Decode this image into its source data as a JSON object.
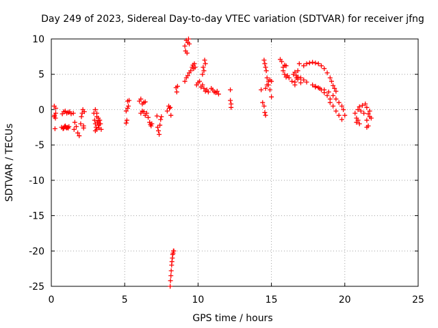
{
  "chart_data": {
    "type": "scatter",
    "title": "Day 249 of 2023, Sidereal Day-to-day VTEC variation (SDTVAR) for receiver jfng",
    "xlabel": "GPS time / hours",
    "ylabel": "SDTVAR / TECUs",
    "xlim": [
      0,
      25
    ],
    "ylim": [
      -25,
      10
    ],
    "xticks": [
      "0",
      "5",
      "10",
      "15",
      "20",
      "25"
    ],
    "yticks": [
      "10",
      "5",
      "0",
      "-5",
      "-10",
      "-15",
      "-20",
      "-25"
    ],
    "grid": true,
    "marker": "plus",
    "series": [
      {
        "name": "SDTVAR",
        "color": "#ff0000",
        "x": [
          0.2,
          0.2,
          0.22,
          0.25,
          0.28,
          0.3,
          0.3,
          0.7,
          0.8,
          0.85,
          0.9,
          0.95,
          1.0,
          1.05,
          1.1,
          1.15,
          1.2,
          0.75,
          0.85,
          0.95,
          1.05,
          1.15,
          1.25,
          1.35,
          1.5,
          1.55,
          1.6,
          1.7,
          1.8,
          1.9,
          2.0,
          2.05,
          2.1,
          2.15,
          2.2,
          2.2,
          2.25,
          2.9,
          2.95,
          3.0,
          3.05,
          3.1,
          3.15,
          3.2,
          3.25,
          3.3,
          3.35,
          3.4,
          3.0,
          3.1,
          3.2,
          3.3,
          3.0,
          3.1,
          3.2,
          5.1,
          5.15,
          5.2,
          5.25,
          5.3,
          5.1,
          5.2,
          6.0,
          6.1,
          6.2,
          6.3,
          6.4,
          6.1,
          6.2,
          6.3,
          6.4,
          6.5,
          6.6,
          6.7,
          6.75,
          6.8,
          6.85,
          7.2,
          7.25,
          7.3,
          7.35,
          7.4,
          7.45,
          7.5,
          7.9,
          8.0,
          8.05,
          8.1,
          8.15,
          8.1,
          8.12,
          8.15,
          8.17,
          8.2,
          8.22,
          8.25,
          8.27,
          8.3,
          8.32,
          8.35,
          8.5,
          8.55,
          8.6,
          9.1,
          9.15,
          9.2,
          9.25,
          9.3,
          9.35,
          9.4,
          9.1,
          9.2,
          9.3,
          9.4,
          9.5,
          9.6,
          9.65,
          9.7,
          9.75,
          9.8,
          9.9,
          10.0,
          10.1,
          10.2,
          10.3,
          10.4,
          10.5,
          10.6,
          10.7,
          10.3,
          10.35,
          10.4,
          10.45,
          10.5,
          10.9,
          11.0,
          11.1,
          11.2,
          11.3,
          11.4,
          12.2,
          12.2,
          12.25,
          12.25,
          14.3,
          14.4,
          14.5,
          14.55,
          14.6,
          14.5,
          14.55,
          14.6,
          14.65,
          14.7,
          14.8,
          14.9,
          15.0,
          14.6,
          14.7,
          14.8,
          14.9,
          15.0,
          15.6,
          15.7,
          15.8,
          15.9,
          16.0,
          16.1,
          15.8,
          15.9,
          16.0,
          16.2,
          16.4,
          16.6,
          16.7,
          16.8,
          16.9,
          16.5,
          16.6,
          16.7,
          16.8,
          17.0,
          16.6,
          16.8,
          17.0,
          17.2,
          17.4,
          17.2,
          17.4,
          17.6,
          17.8,
          18.0,
          18.2,
          18.4,
          18.6,
          18.8,
          19.0,
          19.1,
          19.2,
          19.3,
          19.4,
          18.0,
          18.2,
          18.4,
          18.6,
          18.8,
          19.0,
          17.8,
          18.0,
          18.3,
          18.6,
          18.9,
          19.2,
          19.4,
          19.6,
          19.8,
          19.9,
          20.0,
          19.0,
          19.2,
          19.4,
          19.6,
          19.8,
          20.7,
          20.8,
          20.9,
          21.0,
          21.1,
          21.2,
          21.3,
          21.4,
          21.5,
          20.8,
          20.9,
          21.0,
          21.5,
          21.6,
          21.7,
          21.8,
          21.5,
          21.6,
          21.7
        ],
        "y": [
          -1.0,
          0.5,
          -0.8,
          -2.7,
          -1.2,
          -0.5,
          0.2,
          -2.5,
          -2.7,
          -2.6,
          -2.4,
          -2.3,
          -2.5,
          -2.6,
          -2.5,
          -2.6,
          -2.4,
          -0.6,
          -0.3,
          -0.2,
          -0.5,
          -0.4,
          -0.3,
          -0.6,
          -0.5,
          -2.8,
          -1.8,
          -2.4,
          -3.3,
          -3.7,
          -2.0,
          -1.0,
          -0.5,
          0.0,
          -2.3,
          -2.6,
          -0.3,
          -0.5,
          -1.5,
          -2.0,
          -2.5,
          -1.0,
          -1.8,
          -2.2,
          -2.6,
          -1.5,
          -2.0,
          -2.8,
          0.0,
          -0.5,
          -1.2,
          -2.0,
          -3.0,
          -2.8,
          -1.6,
          -1.9,
          -1.5,
          1.2,
          0.5,
          1.3,
          -0.2,
          0.2,
          1.2,
          1.5,
          0.8,
          1.0,
          1.1,
          -0.5,
          -0.2,
          -0.3,
          -0.8,
          -0.5,
          -1.1,
          -1.8,
          -2.1,
          -2.3,
          -2.0,
          -0.9,
          -2.5,
          -3.0,
          -3.5,
          -2.2,
          -1.4,
          -1.0,
          -0.2,
          0.5,
          0.2,
          0.3,
          -0.8,
          -25.0,
          -24.2,
          -23.5,
          -22.8,
          -22.0,
          -21.5,
          -21.0,
          -20.5,
          -20.3,
          -20.0,
          -20.0,
          3.1,
          2.5,
          3.3,
          9.0,
          8.3,
          9.8,
          8.0,
          9.5,
          10.0,
          9.3,
          4.0,
          4.5,
          4.8,
          5.2,
          5.5,
          6.0,
          6.3,
          5.8,
          6.5,
          6.0,
          3.5,
          3.8,
          4.0,
          3.2,
          3.5,
          3.0,
          2.6,
          2.8,
          2.5,
          5.0,
          6.0,
          5.5,
          7.0,
          6.5,
          3.0,
          2.8,
          2.5,
          2.4,
          2.6,
          2.2,
          2.8,
          1.3,
          0.8,
          0.3,
          2.8,
          1.0,
          0.5,
          -0.4,
          -0.8,
          7.0,
          6.5,
          6.0,
          5.5,
          4.5,
          3.5,
          2.8,
          1.8,
          3.0,
          3.5,
          4.0,
          4.2,
          4.0,
          7.1,
          6.8,
          5.5,
          5.0,
          4.6,
          4.8,
          6.0,
          6.3,
          6.2,
          4.5,
          4.0,
          3.5,
          4.5,
          5.5,
          6.5,
          5.0,
          5.3,
          4.8,
          4.6,
          3.8,
          3.9,
          4.3,
          4.5,
          4.2,
          3.9,
          6.2,
          6.5,
          6.6,
          6.7,
          6.6,
          6.5,
          6.2,
          5.8,
          5.2,
          4.5,
          4.0,
          3.4,
          3.0,
          2.6,
          3.3,
          3.1,
          2.8,
          2.4,
          2.0,
          1.5,
          3.5,
          3.2,
          3.0,
          2.8,
          2.5,
          2.0,
          1.5,
          1.0,
          0.5,
          0.0,
          -0.8,
          1.0,
          0.5,
          -0.2,
          -0.8,
          -1.4,
          -0.5,
          -1.2,
          0.0,
          0.4,
          -0.2,
          0.6,
          -0.5,
          0.8,
          0.3,
          -1.8,
          -1.5,
          -2.0,
          -1.5,
          -2.3,
          -1.0,
          -1.2,
          -2.5,
          -0.6,
          -0.2
        ]
      }
    ]
  }
}
